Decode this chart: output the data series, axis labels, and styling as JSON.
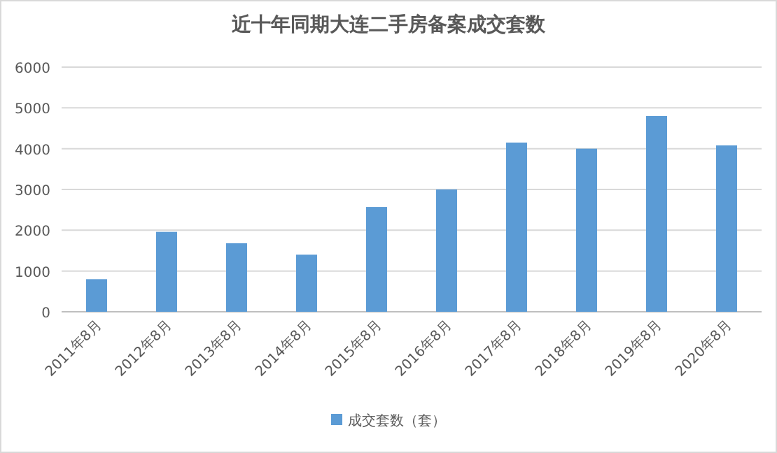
{
  "chart_data": {
    "type": "bar",
    "title": "近十年同期大连二手房备案成交套数",
    "categories": [
      "2011年8月",
      "2012年8月",
      "2013年8月",
      "2014年8月",
      "2015年8月",
      "2016年8月",
      "2017年8月",
      "2018年8月",
      "2019年8月",
      "2020年8月"
    ],
    "series": [
      {
        "name": "成交套数（套）",
        "color": "#5b9bd5",
        "values": [
          800,
          1960,
          1680,
          1400,
          2570,
          3000,
          4150,
          4000,
          4800,
          4080
        ]
      }
    ],
    "ylim": [
      0,
      6000
    ],
    "yticks": [
      0,
      1000,
      2000,
      3000,
      4000,
      5000,
      6000
    ],
    "grid": "y",
    "legend": "bottom"
  }
}
